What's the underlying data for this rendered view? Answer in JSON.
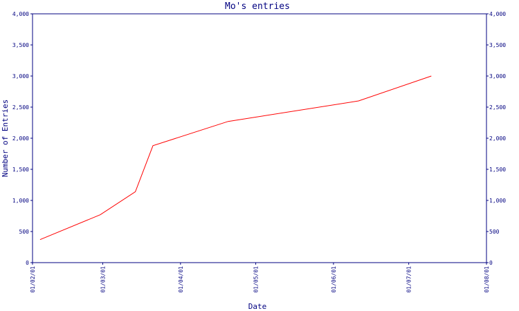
{
  "chart_data": {
    "type": "line",
    "title": "Mo's entries",
    "xlabel": "Date",
    "ylabel": "Number of Entries",
    "x_ticks": [
      "01/02/01",
      "01/03/01",
      "01/04/01",
      "01/05/01",
      "01/06/01",
      "01/07/01",
      "01/08/01"
    ],
    "x_range": [
      "2001-02-01",
      "2001-08-01"
    ],
    "y_ticks": [
      "0",
      "500",
      "1,000",
      "1,500",
      "2,000",
      "2,500",
      "3,000",
      "3,500",
      "4,000"
    ],
    "ylim": [
      0,
      4000
    ],
    "grid": false,
    "colors": {
      "axis": "#000080",
      "series": "#ff0000",
      "text": "#000080"
    },
    "series": [
      {
        "x": [
          "2001-02-04",
          "2001-02-28",
          "2001-03-14",
          "2001-03-21",
          "2001-04-20",
          "2001-06-11",
          "2001-07-10"
        ],
        "y": [
          370,
          770,
          1140,
          1880,
          2270,
          2600,
          3000
        ]
      }
    ]
  }
}
